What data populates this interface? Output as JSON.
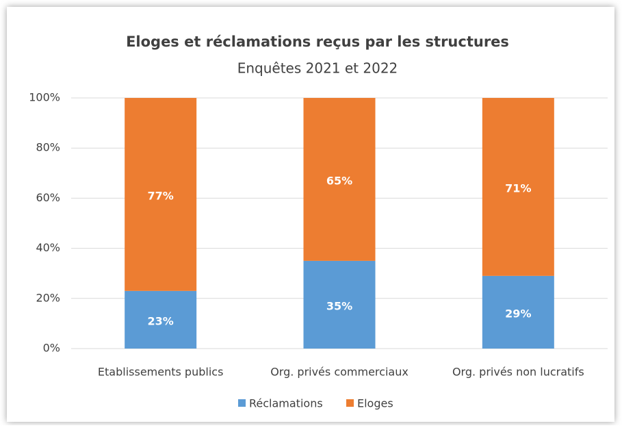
{
  "chart_data": {
    "type": "stacked_bar",
    "title": "Eloges et réclamations reçus par les structures",
    "subtitle": "Enquêtes 2021 et 2022",
    "categories": [
      "Etablissements publics",
      "Org. privés commerciaux",
      "Org. privés non lucratifs"
    ],
    "series": [
      {
        "name": "Réclamations",
        "color": "#5b9bd5",
        "values": [
          23,
          35,
          29
        ],
        "value_labels": [
          "23%",
          "35%",
          "29%"
        ]
      },
      {
        "name": "Eloges",
        "color": "#ed7d31",
        "values": [
          77,
          65,
          71
        ],
        "value_labels": [
          "77%",
          "65%",
          "71%"
        ]
      }
    ],
    "ylim": [
      0,
      100
    ],
    "yticks": [
      {
        "value": 0,
        "label": "0%"
      },
      {
        "value": 20,
        "label": "20%"
      },
      {
        "value": 40,
        "label": "40%"
      },
      {
        "value": 60,
        "label": "60%"
      },
      {
        "value": 80,
        "label": "80%"
      },
      {
        "value": 100,
        "label": "100%"
      }
    ],
    "grid": true,
    "legend": "bottom"
  }
}
